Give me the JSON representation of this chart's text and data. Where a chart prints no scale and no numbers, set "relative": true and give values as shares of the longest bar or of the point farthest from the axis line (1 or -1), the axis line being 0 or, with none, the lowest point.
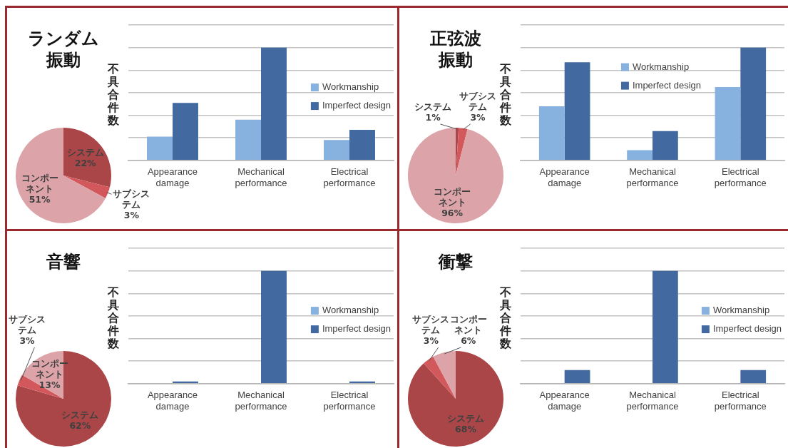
{
  "chart_data": [
    {
      "type": "pie",
      "title": "ランダム振動",
      "categories": [
        "システム",
        "サブシステム",
        "コンポーネント"
      ],
      "values": [
        22,
        3,
        51
      ],
      "value_labels": [
        "22%",
        "3%",
        "51%"
      ],
      "colors": [
        "#aa4648",
        "#d2585c",
        "#dca4a8"
      ]
    },
    {
      "type": "bar",
      "categories": [
        "Appearance\ndamage",
        "Mechanical\nperformance",
        "Electrical\nperformance"
      ],
      "ylabel": "不具合件数",
      "relative": true,
      "grid": "y",
      "legend": "right",
      "series": [
        {
          "name": "Workmanship",
          "color": "#87b1de",
          "values": [
            0.21,
            0.36,
            0.18
          ]
        },
        {
          "name": "Imperfect design",
          "color": "#426aa1",
          "values": [
            0.51,
            1,
            0.27
          ]
        }
      ]
    },
    {
      "type": "pie",
      "title": "正弦波振動",
      "categories": [
        "システム",
        "サブシステム",
        "コンポーネント"
      ],
      "values": [
        1,
        3,
        96
      ],
      "value_labels": [
        "1%",
        "3%",
        "96%"
      ],
      "colors": [
        "#aa4648",
        "#d2585c",
        "#dca4a8"
      ]
    },
    {
      "type": "bar",
      "categories": [
        "Appearance\ndamage",
        "Mechanical\nperformance",
        "Electrical\nperformance"
      ],
      "ylabel": "不具合件数",
      "relative": true,
      "grid": "y",
      "legend": "top",
      "series": [
        {
          "name": "Workmanship",
          "color": "#87b1de",
          "values": [
            0.48,
            0.09,
            0.65
          ]
        },
        {
          "name": "Imperfect design",
          "color": "#426aa1",
          "values": [
            0.87,
            0.26,
            1
          ]
        }
      ]
    },
    {
      "type": "pie",
      "title": "音響",
      "categories": [
        "システム",
        "サブシステム",
        "コンポーネント"
      ],
      "values": [
        62,
        3,
        13
      ],
      "value_labels": [
        "62%",
        "3%",
        "13%"
      ],
      "colors": [
        "#aa4648",
        "#d2585c",
        "#dca4a8"
      ]
    },
    {
      "type": "bar",
      "categories": [
        "Appearance\ndamage",
        "Mechanical\nperformance",
        "Electrical\nperformance"
      ],
      "ylabel": "不具合件数",
      "relative": true,
      "grid": "y",
      "legend": "right",
      "series": [
        {
          "name": "Workmanship",
          "color": "#87b1de",
          "values": [
            0,
            0,
            0
          ]
        },
        {
          "name": "Imperfect design",
          "color": "#426aa1",
          "values": [
            0.02,
            1,
            0.02
          ]
        }
      ]
    },
    {
      "type": "pie",
      "title": "衝撃",
      "categories": [
        "システム",
        "サブシステム",
        "コンポーネント"
      ],
      "values": [
        68,
        3,
        6
      ],
      "value_labels": [
        "68%",
        "3%",
        "6%"
      ],
      "colors": [
        "#aa4648",
        "#d2585c",
        "#dca4a8"
      ]
    },
    {
      "type": "bar",
      "categories": [
        "Appearance\ndamage",
        "Mechanical\nperformance",
        "Electrical\nperformance"
      ],
      "ylabel": "不具合件数",
      "relative": true,
      "grid": "y",
      "legend": "right",
      "series": [
        {
          "name": "Workmanship",
          "color": "#87b1de",
          "values": [
            0,
            0,
            0
          ]
        },
        {
          "name": "Imperfect design",
          "color": "#426aa1",
          "values": [
            0.12,
            1,
            0.12
          ]
        }
      ]
    }
  ]
}
